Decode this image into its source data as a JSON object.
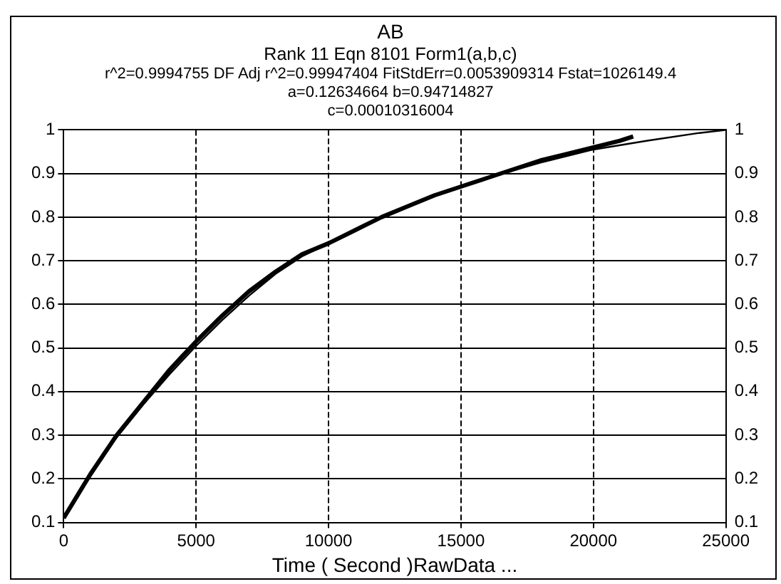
{
  "chart_data": {
    "type": "line",
    "title": "AB",
    "subtitle": "Rank 11  Eqn 8101  Form1(a,b,c)",
    "annotations": [
      "r^2=0.9994755  DF Adj r^2=0.99947404  FitStdErr=0.0053909314  Fstat=1026149.4",
      "a=0.12634664 b=0.94714827",
      "c=0.00010316004"
    ],
    "xlabel": "Time ( Second )RawData ...",
    "series": [
      {
        "color": "#000000",
        "x": [
          0,
          500,
          1000,
          1500,
          2000,
          3000,
          4000,
          5000,
          6000,
          7000,
          8000,
          9000,
          10000,
          11000,
          12000,
          13000,
          14000,
          15000,
          16000,
          17000,
          18000,
          19000,
          20000,
          21000,
          21500
        ],
        "values": [
          0.11,
          0.16,
          0.21,
          0.255,
          0.3,
          0.375,
          0.45,
          0.515,
          0.575,
          0.63,
          0.675,
          0.715,
          0.74,
          0.77,
          0.8,
          0.825,
          0.85,
          0.87,
          0.89,
          0.91,
          0.93,
          0.945,
          0.96,
          0.975,
          0.985
        ]
      },
      {
        "color": "#000000",
        "x": [
          0,
          1000,
          2000,
          3000,
          4000,
          5000,
          6000,
          7000,
          8000,
          9000,
          10000,
          12000,
          14000,
          16000,
          18000,
          20000,
          22000,
          24000,
          25000
        ],
        "values": [
          0.11,
          0.205,
          0.295,
          0.37,
          0.44,
          0.505,
          0.565,
          0.62,
          0.67,
          0.71,
          0.74,
          0.8,
          0.85,
          0.89,
          0.925,
          0.955,
          0.975,
          0.993,
          1.0
        ]
      }
    ],
    "xlim": [
      0,
      25000
    ],
    "xticks": [
      0,
      5000,
      10000,
      15000,
      20000,
      25000
    ],
    "ylim": [
      0.1,
      1
    ],
    "yticks": [
      0.1,
      0.2,
      0.3,
      0.4,
      0.5,
      0.6,
      0.7,
      0.8,
      0.9,
      1
    ],
    "y2lim": [
      0.1,
      1
    ],
    "y2ticks": [
      0.1,
      0.2,
      0.3,
      0.4,
      0.5,
      0.6,
      0.7,
      0.8,
      0.9,
      1
    ],
    "grid": true,
    "marker": "none",
    "line_style": "solid"
  }
}
